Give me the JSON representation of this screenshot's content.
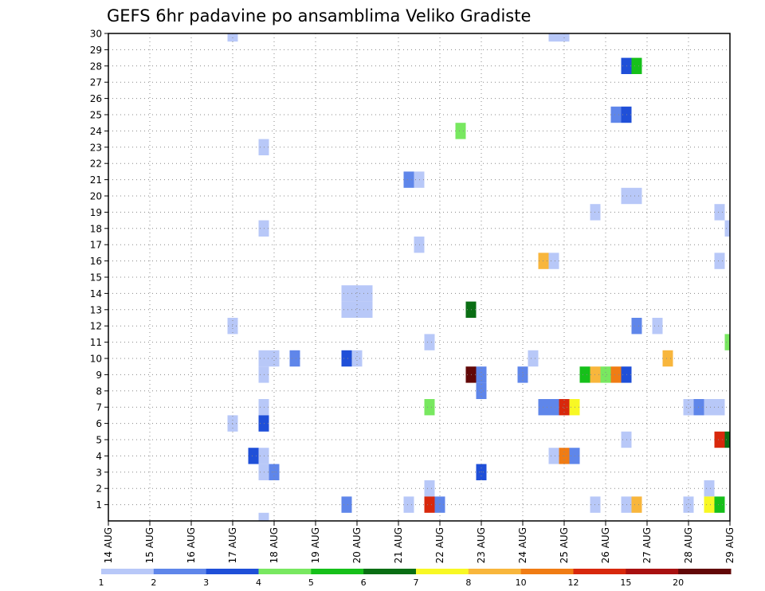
{
  "chart_data": {
    "type": "heatmap",
    "title": "GEFS 6hr padavine po ansamblima Veliko Gradiste",
    "xlabel": "",
    "ylabel": "",
    "x_tick_labels": [
      "14 AUG",
      "15 AUG",
      "16 AUG",
      "17 AUG",
      "18 AUG",
      "19 AUG",
      "20 AUG",
      "21 AUG",
      "22 AUG",
      "23 AUG",
      "24 AUG",
      "25 AUG",
      "26 AUG",
      "27 AUG",
      "28 AUG",
      "29 AUG"
    ],
    "y_tick_labels": [
      "1",
      "2",
      "3",
      "4",
      "5",
      "6",
      "7",
      "8",
      "9",
      "10",
      "11",
      "12",
      "13",
      "14",
      "15",
      "16",
      "17",
      "18",
      "19",
      "20",
      "21",
      "22",
      "23",
      "24",
      "25",
      "26",
      "27",
      "28",
      "29",
      "30"
    ],
    "x_range_days": [
      0,
      15
    ],
    "y_range_members": [
      0,
      30
    ],
    "step_days": 0.25,
    "grid": true,
    "colorbar": {
      "levels": [
        "1",
        "2",
        "3",
        "4",
        "5",
        "6",
        "7",
        "8",
        "10",
        "12",
        "15",
        "20"
      ],
      "colors": [
        "#b8c8f8",
        "#5f86ea",
        "#1f4fd8",
        "#78e860",
        "#16c01a",
        "#0a6e14",
        "#f8f824",
        "#f8b63c",
        "#f07c14",
        "#d8280c",
        "#a81010",
        "#620808"
      ]
    },
    "cells": [
      {
        "d": 3.0,
        "m": 30,
        "c": 0
      },
      {
        "d": 10.75,
        "m": 30,
        "c": 0
      },
      {
        "d": 11.0,
        "m": 30,
        "c": 0
      },
      {
        "d": 12.5,
        "m": 28,
        "c": 2
      },
      {
        "d": 12.75,
        "m": 28,
        "c": 4
      },
      {
        "d": 12.25,
        "m": 25,
        "c": 1
      },
      {
        "d": 12.5,
        "m": 25,
        "c": 2
      },
      {
        "d": 8.5,
        "m": 24,
        "c": 3
      },
      {
        "d": 3.75,
        "m": 23,
        "c": 0
      },
      {
        "d": 7.25,
        "m": 21,
        "c": 1
      },
      {
        "d": 7.5,
        "m": 21,
        "c": 0
      },
      {
        "d": 12.5,
        "m": 20,
        "c": 0
      },
      {
        "d": 12.75,
        "m": 20,
        "c": 0
      },
      {
        "d": 11.75,
        "m": 19,
        "c": 0
      },
      {
        "d": 14.75,
        "m": 19,
        "c": 0
      },
      {
        "d": 3.75,
        "m": 18,
        "c": 0
      },
      {
        "d": 15.0,
        "m": 18,
        "c": 0
      },
      {
        "d": 7.5,
        "m": 17,
        "c": 0
      },
      {
        "d": 10.5,
        "m": 16,
        "c": 7
      },
      {
        "d": 10.75,
        "m": 16,
        "c": 0
      },
      {
        "d": 14.75,
        "m": 16,
        "c": 0
      },
      {
        "d": 5.75,
        "m": 14,
        "c": 0
      },
      {
        "d": 6.0,
        "m": 14,
        "c": 0
      },
      {
        "d": 6.25,
        "m": 14,
        "c": 0
      },
      {
        "d": 5.75,
        "m": 13,
        "c": 0
      },
      {
        "d": 6.0,
        "m": 13,
        "c": 0
      },
      {
        "d": 6.25,
        "m": 13,
        "c": 0
      },
      {
        "d": 8.75,
        "m": 13,
        "c": 5
      },
      {
        "d": 3.0,
        "m": 12,
        "c": 0
      },
      {
        "d": 12.75,
        "m": 12,
        "c": 1
      },
      {
        "d": 13.25,
        "m": 12,
        "c": 0
      },
      {
        "d": 7.75,
        "m": 11,
        "c": 0
      },
      {
        "d": 15.0,
        "m": 11,
        "c": 3
      },
      {
        "d": 3.75,
        "m": 10,
        "c": 0
      },
      {
        "d": 4.0,
        "m": 10,
        "c": 0
      },
      {
        "d": 4.5,
        "m": 10,
        "c": 1
      },
      {
        "d": 5.75,
        "m": 10,
        "c": 2
      },
      {
        "d": 6.0,
        "m": 10,
        "c": 0
      },
      {
        "d": 10.25,
        "m": 10,
        "c": 0
      },
      {
        "d": 13.5,
        "m": 10,
        "c": 7
      },
      {
        "d": 3.75,
        "m": 9,
        "c": 0
      },
      {
        "d": 8.75,
        "m": 9,
        "c": 11
      },
      {
        "d": 9.0,
        "m": 9,
        "c": 1
      },
      {
        "d": 10.0,
        "m": 9,
        "c": 1
      },
      {
        "d": 11.5,
        "m": 9,
        "c": 4
      },
      {
        "d": 11.75,
        "m": 9,
        "c": 7
      },
      {
        "d": 12.0,
        "m": 9,
        "c": 3
      },
      {
        "d": 12.25,
        "m": 9,
        "c": 8
      },
      {
        "d": 12.5,
        "m": 9,
        "c": 2
      },
      {
        "d": 9.0,
        "m": 8,
        "c": 1
      },
      {
        "d": 3.75,
        "m": 7,
        "c": 0
      },
      {
        "d": 7.75,
        "m": 7,
        "c": 3
      },
      {
        "d": 10.5,
        "m": 7,
        "c": 1
      },
      {
        "d": 10.75,
        "m": 7,
        "c": 1
      },
      {
        "d": 11.0,
        "m": 7,
        "c": 9
      },
      {
        "d": 11.25,
        "m": 7,
        "c": 6
      },
      {
        "d": 14.0,
        "m": 7,
        "c": 0
      },
      {
        "d": 14.25,
        "m": 7,
        "c": 1
      },
      {
        "d": 14.5,
        "m": 7,
        "c": 0
      },
      {
        "d": 14.75,
        "m": 7,
        "c": 0
      },
      {
        "d": 3.0,
        "m": 6,
        "c": 0
      },
      {
        "d": 3.75,
        "m": 6,
        "c": 2
      },
      {
        "d": 12.5,
        "m": 5,
        "c": 0
      },
      {
        "d": 14.75,
        "m": 5,
        "c": 9
      },
      {
        "d": 15.0,
        "m": 5,
        "c": 5
      },
      {
        "d": 3.5,
        "m": 4,
        "c": 2
      },
      {
        "d": 3.75,
        "m": 4,
        "c": 0
      },
      {
        "d": 10.75,
        "m": 4,
        "c": 0
      },
      {
        "d": 11.0,
        "m": 4,
        "c": 8
      },
      {
        "d": 11.25,
        "m": 4,
        "c": 1
      },
      {
        "d": 3.75,
        "m": 3,
        "c": 0
      },
      {
        "d": 4.0,
        "m": 3,
        "c": 1
      },
      {
        "d": 9.0,
        "m": 3,
        "c": 2
      },
      {
        "d": 7.75,
        "m": 2,
        "c": 0
      },
      {
        "d": 14.5,
        "m": 2,
        "c": 0
      },
      {
        "d": 5.75,
        "m": 1,
        "c": 1
      },
      {
        "d": 7.25,
        "m": 1,
        "c": 0
      },
      {
        "d": 7.75,
        "m": 1,
        "c": 9
      },
      {
        "d": 8.0,
        "m": 1,
        "c": 1
      },
      {
        "d": 11.75,
        "m": 1,
        "c": 0
      },
      {
        "d": 12.5,
        "m": 1,
        "c": 0
      },
      {
        "d": 12.75,
        "m": 1,
        "c": 7
      },
      {
        "d": 14.0,
        "m": 1,
        "c": 0
      },
      {
        "d": 14.5,
        "m": 1,
        "c": 6
      },
      {
        "d": 14.75,
        "m": 1,
        "c": 4
      },
      {
        "d": 3.75,
        "m": 0,
        "c": 0
      }
    ]
  }
}
